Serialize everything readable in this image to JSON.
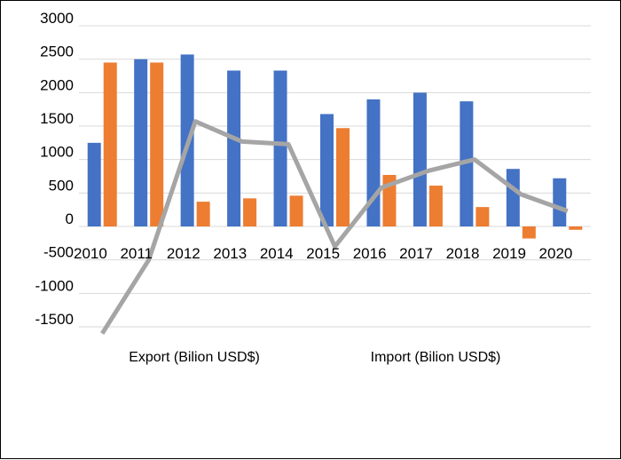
{
  "chart_data": {
    "type": "bar",
    "categories": [
      "2010",
      "2011",
      "2012",
      "2013",
      "2014",
      "2015",
      "2016",
      "2017",
      "2018",
      "2019",
      "2020"
    ],
    "series": [
      {
        "name": "Export (Bilion USD$)",
        "type": "bar",
        "color": "#4472C4",
        "values": [
          1250,
          2500,
          2570,
          2330,
          2330,
          1680,
          1900,
          2000,
          1870,
          860,
          720
        ]
      },
      {
        "name": "Import (Bilion USD$)",
        "type": "bar",
        "color": "#ED7D31",
        "values": [
          2450,
          2450,
          370,
          420,
          460,
          1470,
          770,
          610,
          290,
          -180,
          -50
        ]
      },
      {
        "type": "line",
        "color": "#A5A5A5",
        "values": [
          -1600,
          -500,
          1570,
          1270,
          1230,
          -300,
          580,
          830,
          1000,
          480,
          230
        ]
      }
    ],
    "yticks": [
      "3000",
      "2500",
      "2000",
      "1500",
      "1000",
      "500",
      "0",
      "-500",
      "-1000",
      "-1500"
    ],
    "ylim": [
      -1650,
      3000
    ],
    "grid": true,
    "legend": "bottom"
  }
}
